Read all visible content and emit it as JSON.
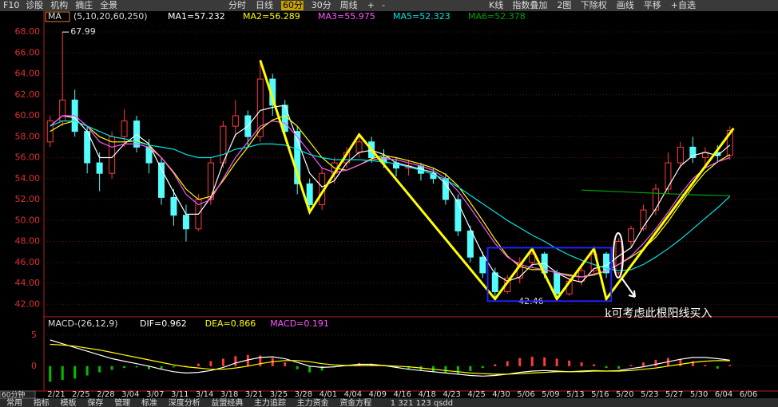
{
  "toolbar": {
    "quick": [
      "F10",
      "诊股",
      "机构",
      "摘庄",
      "全景"
    ],
    "periods": [
      {
        "label": "分时"
      },
      {
        "label": "日线"
      },
      {
        "label": "60分",
        "active": true
      },
      {
        "label": "30分"
      },
      {
        "label": "周线"
      },
      {
        "label": "+"
      },
      {
        "label": "-"
      }
    ],
    "tools": [
      "K线",
      "指数叠加",
      "2图",
      "下除权",
      "画线",
      "平移",
      "+自选"
    ]
  },
  "chart_data": [
    {
      "type": "candlestick",
      "indicator": "MA",
      "params": "(5,10,20,60,250)",
      "up_color": "#ff3c3c",
      "down_color": "#54fcfc",
      "grid": true,
      "xlim": [
        0,
        57
      ],
      "xticks": [
        {
          "value": 1,
          "label": "2/21"
        },
        {
          "value": 3,
          "label": "2/25"
        },
        {
          "value": 5,
          "label": "2/28"
        },
        {
          "value": 7,
          "label": "3/04"
        },
        {
          "value": 9,
          "label": "3/07"
        },
        {
          "value": 11,
          "label": "3/11"
        },
        {
          "value": 13,
          "label": "3/14"
        },
        {
          "value": 15,
          "label": "3/18"
        },
        {
          "value": 17,
          "label": "3/21"
        },
        {
          "value": 19,
          "label": "3/25"
        },
        {
          "value": 21,
          "label": "3/28"
        },
        {
          "value": 23,
          "label": "4/01"
        },
        {
          "value": 25,
          "label": "4/04"
        },
        {
          "value": 27,
          "label": "4/09"
        },
        {
          "value": 29,
          "label": "4/16"
        },
        {
          "value": 31,
          "label": "4/18"
        },
        {
          "value": 33,
          "label": "4/23"
        },
        {
          "value": 35,
          "label": "4/25"
        },
        {
          "value": 37,
          "label": "4/30"
        },
        {
          "value": 39,
          "label": "5/06"
        },
        {
          "value": 41,
          "label": "5/09"
        },
        {
          "value": 43,
          "label": "5/13"
        },
        {
          "value": 45,
          "label": "5/16"
        },
        {
          "value": 47,
          "label": "5/20"
        },
        {
          "value": 49,
          "label": "5/23"
        },
        {
          "value": 51,
          "label": "5/27"
        },
        {
          "value": 53,
          "label": "5/30"
        },
        {
          "value": 55,
          "label": "6/04"
        },
        {
          "value": 57,
          "label": "6/06"
        }
      ],
      "ylim": [
        40.9,
        68.8
      ],
      "yticks": [
        {
          "value": 42,
          "label": "42.00"
        },
        {
          "value": 44,
          "label": "44.00"
        },
        {
          "value": 46,
          "label": "46.00"
        },
        {
          "value": 48,
          "label": "48.00"
        },
        {
          "value": 50,
          "label": "50.00"
        },
        {
          "value": 52,
          "label": "52.00"
        },
        {
          "value": 54,
          "label": "54.00"
        },
        {
          "value": 56,
          "label": "56.00"
        },
        {
          "value": 58,
          "label": "58.00"
        },
        {
          "value": 60,
          "label": "60.00"
        },
        {
          "value": 62,
          "label": "62.00"
        },
        {
          "value": 64,
          "label": "64.00"
        },
        {
          "value": 66,
          "label": "66.00"
        },
        {
          "value": 68,
          "label": "68.00"
        }
      ],
      "candles": {
        "open": [
          57.5,
          59.5,
          61.5,
          58.5,
          55.5,
          54.5,
          58,
          59.5,
          57,
          55.5,
          52.2,
          50.5,
          49.2,
          52,
          55.5,
          59,
          60,
          58,
          63.5,
          61,
          58.5,
          53.5,
          51.5,
          54.5,
          55.5,
          56.5,
          57.5,
          56,
          55.5,
          55,
          55.2,
          54.5,
          54,
          52,
          49,
          46.5,
          45,
          43.2,
          44.5,
          46,
          46.8,
          45,
          43,
          44.2,
          45.2,
          46.8,
          45,
          48,
          49.2,
          51,
          53,
          55.5,
          57,
          56,
          56.5,
          56.2
        ],
        "high": [
          60,
          67.99,
          62.5,
          59,
          56.5,
          58.5,
          60.6,
          60,
          57.8,
          56,
          53,
          51.5,
          52.5,
          56,
          59.5,
          61.5,
          60.5,
          65.3,
          64,
          61.5,
          59,
          54,
          55,
          56,
          57,
          58.2,
          58,
          56.8,
          56,
          55.8,
          55.5,
          55,
          54.5,
          52.5,
          49.5,
          47,
          45.5,
          44.8,
          46.5,
          47.2,
          47,
          45.3,
          44.5,
          45.5,
          47.3,
          47,
          48.3,
          49.5,
          51.5,
          53.5,
          56.5,
          57.5,
          58,
          57,
          57.2,
          59
        ],
        "low": [
          57,
          59,
          58,
          54.5,
          52.8,
          54,
          57,
          56.5,
          54.5,
          51.5,
          49.5,
          48,
          49,
          51.5,
          55,
          58,
          57,
          57.5,
          60,
          58,
          52.5,
          50.8,
          51,
          53.5,
          55,
          56,
          55.5,
          55,
          54.2,
          54.3,
          53.8,
          53.5,
          51.5,
          48.5,
          46,
          44.5,
          42.5,
          43,
          44,
          45.5,
          44.5,
          42.46,
          42.8,
          43.8,
          45,
          44.5,
          44.8,
          47.5,
          49,
          50.5,
          52.5,
          55,
          55.5,
          55,
          55.5,
          55.8
        ],
        "close": [
          59.5,
          61.5,
          58.5,
          55.5,
          54.5,
          58,
          59.5,
          57,
          55.5,
          52.2,
          50.5,
          49.2,
          52,
          55.5,
          59,
          60,
          58,
          63.5,
          61,
          58.5,
          53.5,
          51.5,
          54.5,
          55.5,
          56.5,
          57.5,
          56,
          55.5,
          55,
          55.2,
          54.5,
          54,
          52,
          49,
          46.5,
          45,
          43.2,
          44.5,
          46,
          46.8,
          45,
          43,
          44.2,
          45.2,
          46.8,
          45,
          48,
          49.2,
          51,
          53,
          55.5,
          57,
          56,
          56.5,
          56.2,
          58.6
        ]
      },
      "series": [
        {
          "name": "MA1=57.232",
          "color": "#ffffff",
          "values": [
            59,
            60,
            59.8,
            58.5,
            56,
            56,
            57.3,
            58.2,
            57.3,
            54.9,
            52.7,
            50.6,
            50.6,
            52.2,
            55.5,
            58.2,
            59,
            60.5,
            60.8,
            61,
            57.7,
            54.5,
            53.2,
            53.8,
            55.5,
            56.5,
            56.7,
            56.3,
            55.5,
            55.2,
            54.9,
            54.6,
            53.5,
            51.7,
            49.2,
            46.8,
            44.9,
            44.2,
            44.6,
            45.8,
            45.9,
            45,
            44.4,
            44.1,
            45.4,
            45.7,
            46.6,
            47.4,
            49.4,
            51.1,
            53.2,
            55.2,
            56.2,
            56.5,
            56.2,
            57.2
          ]
        },
        {
          "name": "MA2=56.289",
          "color": "#ffff00",
          "values": [
            58.5,
            59.2,
            59.5,
            59,
            58,
            57.5,
            57.5,
            57.6,
            57.2,
            56,
            54.6,
            53,
            52,
            52.3,
            53.8,
            55.5,
            57,
            58.7,
            59.6,
            60,
            59,
            57.5,
            56,
            55,
            54.8,
            55.3,
            55.9,
            56.2,
            56,
            55.7,
            55.4,
            55,
            54.4,
            53.3,
            51.7,
            50,
            48.2,
            46.6,
            45.6,
            45.3,
            45.3,
            45,
            44.8,
            44.6,
            44.8,
            45.2,
            45.8,
            46.5,
            47.3,
            48.4,
            49.9,
            51.6,
            53.2,
            54.6,
            55.6,
            56.3
          ]
        },
        {
          "name": "MA3=55.975",
          "color": "#ff55ff",
          "values": [
            59,
            60,
            60,
            59,
            57.5,
            57,
            57.3,
            57.3,
            57,
            56,
            54.5,
            52.5,
            51.5,
            52,
            54,
            56,
            57.5,
            59,
            59.5,
            59.3,
            58,
            56.5,
            55,
            54.6,
            54.8,
            55.3,
            55.8,
            55.9,
            55.8,
            55.5,
            55.2,
            54.8,
            54,
            52.8,
            51.2,
            49.5,
            47.8,
            46.5,
            45.8,
            45.5,
            45.3,
            45,
            44.7,
            44.6,
            44.9,
            45.2,
            45.8,
            46.6,
            47.8,
            49.2,
            50.8,
            52.5,
            54,
            55,
            55.6,
            56
          ]
        },
        {
          "name": "MA5=52.323",
          "color": "#00e5e5",
          "values": [
            59,
            59.5,
            59.5,
            59,
            58.5,
            58,
            57.8,
            57.5,
            57.2,
            57,
            56.8,
            56.3,
            56,
            56,
            56.3,
            56.8,
            57,
            57.3,
            57.3,
            57.2,
            56.8,
            56.3,
            56,
            55.8,
            55.8,
            55.8,
            55.7,
            55.6,
            55.4,
            55.1,
            54.8,
            54.4,
            53.9,
            53.2,
            52.4,
            51.6,
            50.8,
            50,
            49.3,
            48.6,
            48,
            47.3,
            46.7,
            46.2,
            45.8,
            45.4,
            45.2,
            45.3,
            45.8,
            46.5,
            47.3,
            48.2,
            49.2,
            50.2,
            51.2,
            52.3
          ]
        },
        {
          "name": "MA6=52.378",
          "color": "#00a000",
          "values": [
            null,
            null,
            null,
            null,
            null,
            null,
            null,
            null,
            null,
            null,
            null,
            null,
            null,
            null,
            null,
            null,
            null,
            null,
            null,
            null,
            null,
            null,
            null,
            null,
            null,
            null,
            null,
            null,
            null,
            null,
            null,
            null,
            null,
            null,
            null,
            null,
            null,
            null,
            null,
            null,
            null,
            null,
            null,
            52.9,
            52.85,
            52.8,
            52.75,
            52.7,
            52.65,
            52.6,
            52.55,
            52.5,
            52.45,
            52.42,
            52.4,
            52.38
          ]
        }
      ],
      "zigzag": {
        "color": "#ffff00",
        "x": [
          17.5,
          21.5,
          25.5,
          36.5,
          39.5,
          41.5,
          44.5,
          45.5,
          55.8
        ],
        "y": [
          65.3,
          50.8,
          58.2,
          42.5,
          47.3,
          42.5,
          47.3,
          42.5,
          58.8
        ]
      },
      "box": {
        "color": "#2222ff",
        "x": [
          35.9,
          45.9
        ],
        "y": [
          42.3,
          47.4
        ]
      }
    },
    {
      "type": "macd",
      "title": "MACD-(26,12,9)",
      "xlim": [
        0,
        57
      ],
      "ylim": [
        -4,
        6
      ],
      "yticks": [
        0,
        5
      ],
      "up_color": "#ff3c3c",
      "down_color": "#00c000",
      "series": [
        {
          "name": "DIF=0.962",
          "color": "#ffffff",
          "values": [
            4.2,
            3.6,
            3,
            2.4,
            1.8,
            1.2,
            0.8,
            0.4,
            0,
            -0.5,
            -0.9,
            -1.1,
            -1,
            -0.7,
            -0.2,
            0.5,
            1,
            1.4,
            1.5,
            1.2,
            0.6,
            0,
            -0.2,
            -0.1,
            0.1,
            0.3,
            0.3,
            0.1,
            -0.2,
            -0.5,
            -0.7,
            -0.9,
            -1.1,
            -1.3,
            -1.5,
            -1.6,
            -1.5,
            -1.3,
            -1,
            -0.8,
            -0.7,
            -0.8,
            -0.9,
            -0.8,
            -0.7,
            -0.8,
            -0.7,
            -0.4,
            -0.1,
            0.3,
            0.7,
            1.1,
            1.4,
            1.4,
            1.2,
            0.962
          ]
        },
        {
          "name": "DEA=0.866",
          "color": "#ffff00",
          "values": [
            3.5,
            3.4,
            3.2,
            2.9,
            2.6,
            2.2,
            1.8,
            1.4,
            1,
            0.6,
            0.2,
            -0.1,
            -0.3,
            -0.5,
            -0.5,
            -0.3,
            0,
            0.4,
            0.7,
            0.9,
            0.9,
            0.7,
            0.4,
            0.2,
            0.1,
            0.1,
            0.1,
            0.1,
            0,
            -0.1,
            -0.3,
            -0.5,
            -0.7,
            -0.9,
            -1.1,
            -1.2,
            -1.3,
            -1.3,
            -1.2,
            -1.1,
            -1,
            -0.9,
            -0.9,
            -0.9,
            -0.8,
            -0.8,
            -0.8,
            -0.7,
            -0.5,
            -0.3,
            0,
            0.3,
            0.6,
            0.8,
            0.9,
            0.866
          ]
        },
        {
          "name": "MACD=0.191",
          "color": "#ff55ff",
          "bars": true,
          "values": [
            -2.5,
            -2.2,
            -2,
            -1.5,
            -1,
            -0.6,
            -0.3,
            -0.2,
            -0.5,
            -0.4,
            -0.2,
            0.1,
            0.4,
            0.8,
            1.2,
            1.6,
            1.8,
            1.7,
            1.3,
            0.6,
            -0.5,
            -1,
            -0.7,
            -0.2,
            0.2,
            0.5,
            0.4,
            0.2,
            -0.2,
            -0.5,
            -0.8,
            -1,
            -1.1,
            -1.2,
            -0.8,
            -0.3,
            0.3,
            0.8,
            1.3,
            1.5,
            1.4,
            1.2,
            0.9,
            0.6,
            0.3,
            -0.3,
            -0.4,
            0.2,
            0.6,
            1,
            1.3,
            1.2,
            0.8,
            0.2,
            -0.4,
            0.191
          ]
        }
      ]
    }
  ],
  "annotation_text": "k可考虑此根阳线买入",
  "period_label": "60分钟",
  "tabs": [
    "常用",
    "指标",
    "模板",
    "保存",
    "管理",
    "标准",
    "深度分析",
    "益盟经典",
    "主力追踪",
    "主力资金",
    "资金方程"
  ],
  "status": "1 321 123 qsdd"
}
